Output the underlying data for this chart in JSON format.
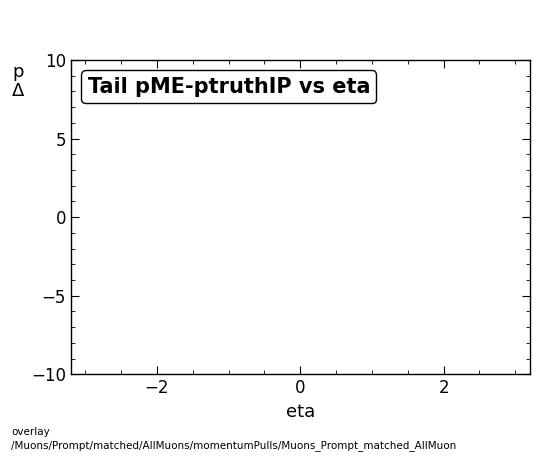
{
  "title": "Tail pME-ptruthIP vs eta",
  "xlabel": "eta",
  "ylabel_line1": "p",
  "ylabel_line2": "Δ",
  "xlim": [
    -3.2,
    3.2
  ],
  "ylim": [
    -10,
    10
  ],
  "xticks": [
    -2,
    0,
    2
  ],
  "yticks": [
    -10,
    -5,
    0,
    5,
    10
  ],
  "legend_text": "Tail pME-ptruthIP vs eta",
  "bottom_label_line1": "overlay",
  "bottom_label_line2": "/Muons/Prompt/matched/AllMuons/momentumPulls/Muons_Prompt_matched_AllMuon",
  "background_color": "#ffffff",
  "plot_background": "#ffffff",
  "title_fontsize": 15,
  "label_fontsize": 13,
  "tick_fontsize": 12,
  "bottom_fontsize": 7.5
}
